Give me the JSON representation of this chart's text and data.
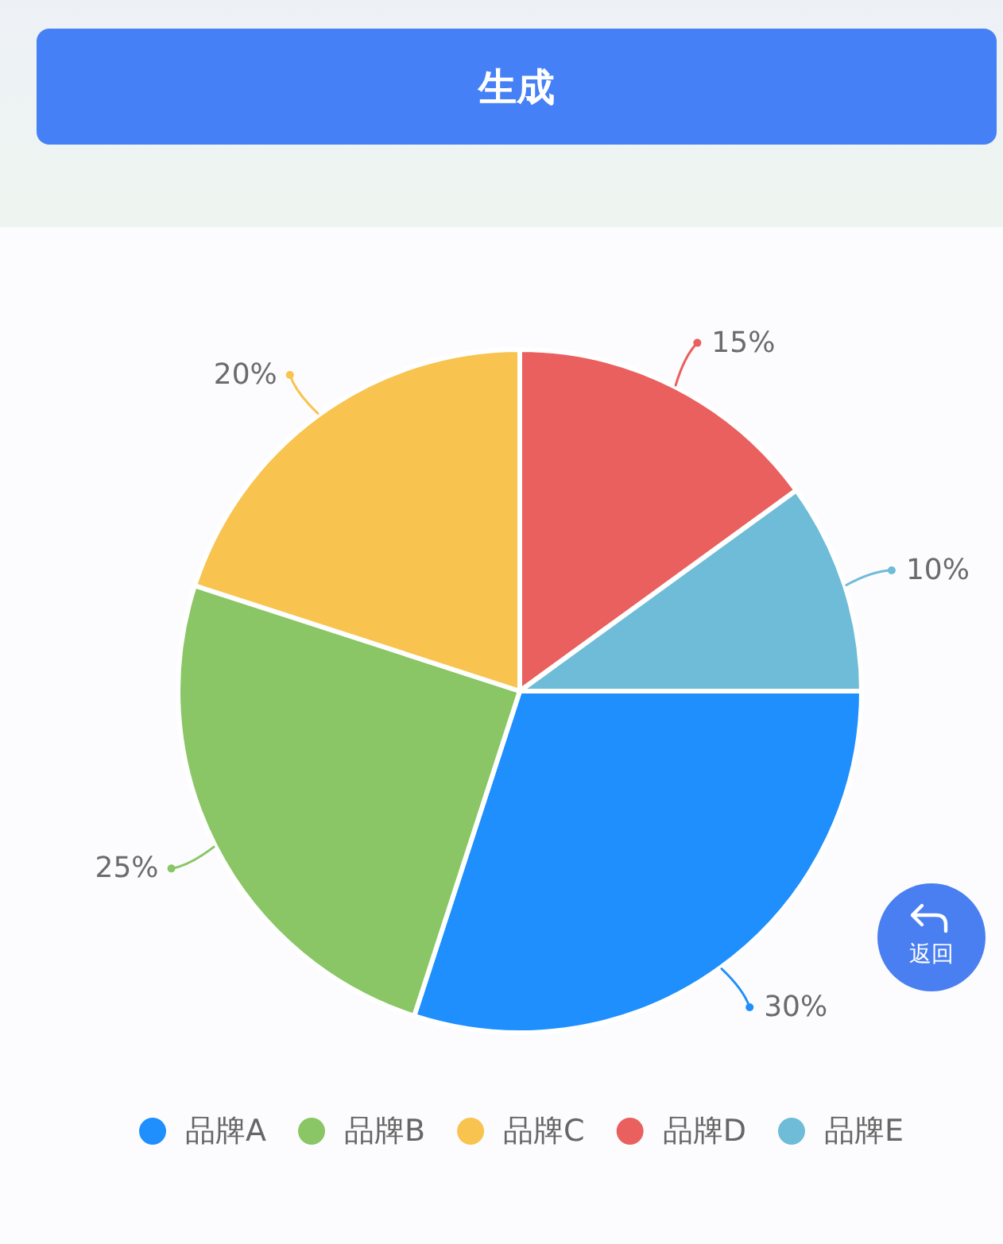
{
  "chart_data": {
    "type": "pie",
    "categories": [
      "品牌A",
      "品牌B",
      "品牌C",
      "品牌D",
      "品牌E"
    ],
    "values": [
      30,
      25,
      20,
      15,
      10
    ],
    "colors": [
      "#1e8ffc",
      "#8ac665",
      "#f8c34f",
      "#e9605f",
      "#6fbcd8"
    ],
    "value_labels": [
      "30%",
      "25%",
      "20%",
      "15%",
      "10%"
    ],
    "legend": "bottom",
    "annotations": [
      "生成",
      "返回"
    ]
  }
}
